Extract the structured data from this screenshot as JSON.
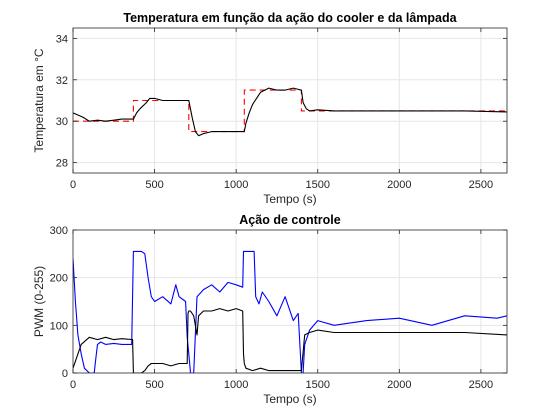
{
  "chart_data": [
    {
      "type": "line",
      "title": "Temperatura em função da ação do cooler e da lâmpada",
      "xlabel": "Tempo (s)",
      "ylabel": "Temperatura em °C",
      "xlim": [
        0,
        2660
      ],
      "ylim": [
        27.5,
        34.5
      ],
      "xticks": [
        0,
        500,
        1000,
        1500,
        2000,
        2500
      ],
      "yticks": [
        28,
        30,
        32,
        34
      ],
      "grid": true,
      "series": [
        {
          "style": "dashed",
          "color": "#ff0000",
          "x": [
            0,
            370,
            370,
            710,
            710,
            1050,
            1050,
            1400,
            1400,
            2660
          ],
          "y": [
            30,
            30,
            31,
            31,
            29.5,
            29.5,
            31.5,
            31.5,
            30.5,
            30.5
          ]
        },
        {
          "style": "solid",
          "color": "#000000",
          "x": [
            0,
            30,
            60,
            100,
            150,
            200,
            250,
            300,
            370,
            390,
            410,
            450,
            470,
            500,
            550,
            600,
            650,
            710,
            730,
            750,
            770,
            800,
            850,
            900,
            950,
            1000,
            1050,
            1060,
            1080,
            1100,
            1150,
            1200,
            1250,
            1300,
            1350,
            1400,
            1410,
            1430,
            1450,
            1500,
            1600,
            1800,
            2000,
            2200,
            2400,
            2660
          ],
          "y": [
            30.4,
            30.3,
            30.2,
            30.0,
            30.05,
            30.0,
            30.05,
            30.1,
            30.1,
            30.4,
            30.6,
            30.9,
            31.1,
            31.1,
            31.0,
            31.0,
            31.0,
            31.0,
            30.2,
            29.5,
            29.3,
            29.4,
            29.5,
            29.5,
            29.5,
            29.5,
            29.5,
            29.9,
            30.4,
            30.8,
            31.4,
            31.6,
            31.5,
            31.5,
            31.6,
            31.5,
            30.9,
            30.6,
            30.5,
            30.55,
            30.5,
            30.5,
            30.5,
            30.5,
            30.5,
            30.45
          ]
        }
      ]
    },
    {
      "type": "line",
      "title": "Ação de controle",
      "xlabel": "Tempo (s)",
      "ylabel": "PWM (0-255)",
      "xlim": [
        0,
        2660
      ],
      "ylim": [
        0,
        300
      ],
      "xticks": [
        0,
        500,
        1000,
        1500,
        2000,
        2500
      ],
      "yticks": [
        0,
        100,
        200,
        300
      ],
      "grid": true,
      "series": [
        {
          "style": "solid",
          "color": "#0000ff",
          "x": [
            0,
            15,
            30,
            50,
            70,
            100,
            130,
            140,
            150,
            170,
            200,
            250,
            300,
            360,
            370,
            375,
            420,
            440,
            460,
            480,
            500,
            550,
            600,
            630,
            650,
            690,
            700,
            710,
            715,
            720,
            740,
            760,
            800,
            850,
            900,
            950,
            1000,
            1040,
            1045,
            1050,
            1060,
            1100,
            1110,
            1120,
            1140,
            1160,
            1200,
            1250,
            1300,
            1350,
            1380,
            1400,
            1410,
            1420,
            1450,
            1500,
            1600,
            1800,
            2000,
            2200,
            2400,
            2600,
            2660
          ],
          "y": [
            240,
            150,
            80,
            40,
            10,
            0,
            0,
            30,
            60,
            65,
            60,
            62,
            60,
            60,
            255,
            255,
            255,
            250,
            200,
            160,
            150,
            160,
            145,
            185,
            160,
            150,
            75,
            40,
            20,
            0,
            0,
            160,
            175,
            185,
            170,
            190,
            185,
            180,
            255,
            255,
            255,
            255,
            255,
            160,
            145,
            170,
            150,
            120,
            160,
            110,
            125,
            0,
            0,
            60,
            90,
            110,
            100,
            110,
            115,
            100,
            120,
            115,
            120
          ]
        },
        {
          "style": "solid",
          "color": "#000000",
          "x": [
            0,
            20,
            50,
            100,
            150,
            200,
            250,
            300,
            365,
            370,
            380,
            420,
            440,
            460,
            480,
            500,
            550,
            600,
            650,
            700,
            705,
            710,
            720,
            740,
            760,
            770,
            800,
            850,
            900,
            950,
            1000,
            1040,
            1045,
            1050,
            1060,
            1100,
            1150,
            1200,
            1300,
            1400,
            1420,
            1450,
            1500,
            1600,
            1800,
            2000,
            2200,
            2400,
            2660
          ],
          "y": [
            10,
            30,
            60,
            75,
            70,
            75,
            70,
            72,
            70,
            0,
            0,
            0,
            5,
            15,
            20,
            20,
            20,
            15,
            20,
            20,
            125,
            130,
            130,
            120,
            80,
            120,
            130,
            130,
            135,
            130,
            135,
            130,
            40,
            20,
            10,
            5,
            10,
            5,
            5,
            5,
            80,
            85,
            90,
            85,
            85,
            85,
            85,
            85,
            80
          ]
        }
      ]
    }
  ]
}
